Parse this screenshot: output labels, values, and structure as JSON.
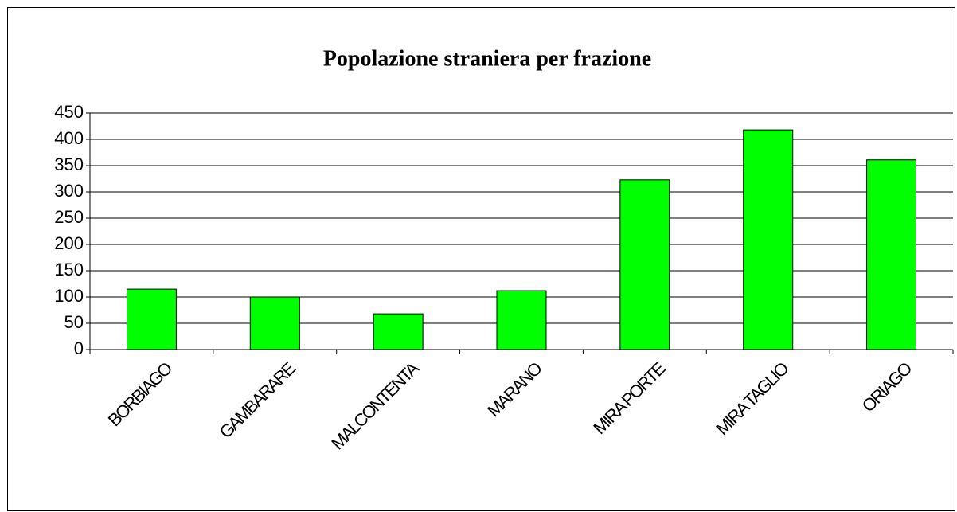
{
  "chart_data": {
    "type": "bar",
    "title": "Popolazione straniera per frazione",
    "categories": [
      "BORBIAGO",
      "GAMBARARE",
      "MALCONTENTA",
      "MARANO",
      "MIRA PORTE",
      "MIRA TAGLIO",
      "ORIAGO"
    ],
    "values": [
      115,
      100,
      68,
      112,
      323,
      418,
      361
    ],
    "color": "#00ff00",
    "ylim": [
      0,
      450
    ],
    "yticks": [
      0,
      50,
      100,
      150,
      200,
      250,
      300,
      350,
      400,
      450
    ],
    "grid": true
  }
}
